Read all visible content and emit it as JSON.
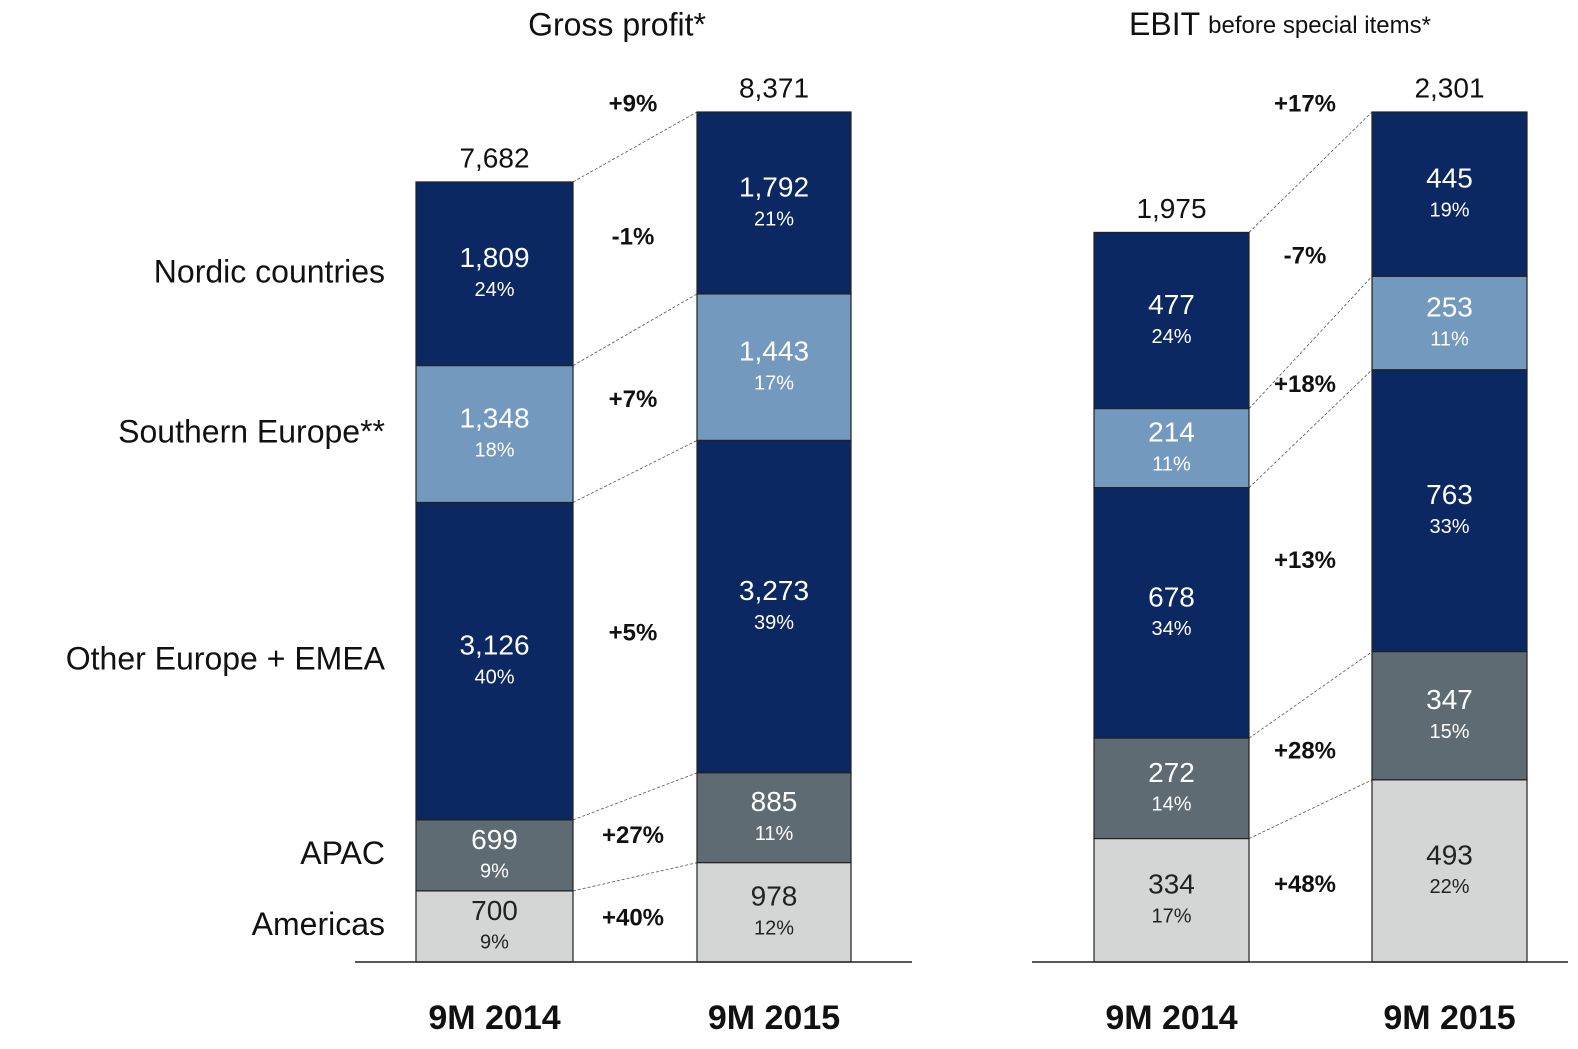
{
  "chart_data": [
    {
      "type": "stacked_bar",
      "title": "Gross profit*",
      "categories": [
        "9M 2014",
        "9M 2015"
      ],
      "totals": [
        7682,
        8371
      ],
      "total_labels": [
        "7,682",
        "8,371"
      ],
      "total_change": "+9%",
      "series": [
        {
          "name": "Nordic countries",
          "color": "#0b2862",
          "values": [
            1809,
            1792
          ],
          "value_labels": [
            "1,809",
            "1,792"
          ],
          "shares": [
            24,
            21
          ],
          "share_labels": [
            "24%",
            "21%"
          ],
          "change": "-1%"
        },
        {
          "name": "Southern Europe**",
          "color": "#7399bf",
          "values": [
            1348,
            1443
          ],
          "value_labels": [
            "1,348",
            "1,443"
          ],
          "shares": [
            18,
            17
          ],
          "share_labels": [
            "18%",
            "17%"
          ],
          "change": "+7%"
        },
        {
          "name": "Other Europe + EMEA",
          "color": "#0b2862",
          "values": [
            3126,
            3273
          ],
          "value_labels": [
            "3,126",
            "3,273"
          ],
          "shares": [
            40,
            39
          ],
          "share_labels": [
            "40%",
            "39%"
          ],
          "change": "+5%"
        },
        {
          "name": "APAC",
          "color": "#5e6b73",
          "values": [
            699,
            885
          ],
          "value_labels": [
            "699",
            "885"
          ],
          "shares": [
            9,
            11
          ],
          "share_labels": [
            "9%",
            "11%"
          ],
          "change": "+27%"
        },
        {
          "name": "Americas",
          "color": "#d4d6d6",
          "values": [
            700,
            978
          ],
          "value_labels": [
            "700",
            "978"
          ],
          "shares": [
            9,
            12
          ],
          "share_labels": [
            "9%",
            "12%"
          ],
          "change": "+40%"
        }
      ]
    },
    {
      "type": "stacked_bar",
      "title": "EBIT",
      "subtitle": "before special items*",
      "categories": [
        "9M 2014",
        "9M 2015"
      ],
      "totals": [
        1975,
        2301
      ],
      "total_labels": [
        "1,975",
        "2,301"
      ],
      "total_change": "+17%",
      "series": [
        {
          "color": "#0b2862",
          "values": [
            477,
            445
          ],
          "shares": [
            24,
            19
          ],
          "share_labels": [
            "24%",
            "19%"
          ],
          "change": "-7%"
        },
        {
          "color": "#7399bf",
          "values": [
            214,
            253
          ],
          "shares": [
            11,
            11
          ],
          "share_labels": [
            "11%",
            "11%"
          ],
          "change": "+18%"
        },
        {
          "color": "#0b2862",
          "values": [
            678,
            763
          ],
          "shares": [
            34,
            33
          ],
          "share_labels": [
            "34%",
            "33%"
          ],
          "change": "+13%"
        },
        {
          "color": "#5e6b73",
          "values": [
            272,
            347
          ],
          "shares": [
            14,
            15
          ],
          "share_labels": [
            "14%",
            "15%"
          ],
          "change": "+28%"
        },
        {
          "color": "#d4d6d6",
          "values": [
            334,
            493
          ],
          "shares": [
            17,
            22
          ],
          "share_labels": [
            "17%",
            "22%"
          ],
          "change": "+48%"
        }
      ]
    }
  ]
}
